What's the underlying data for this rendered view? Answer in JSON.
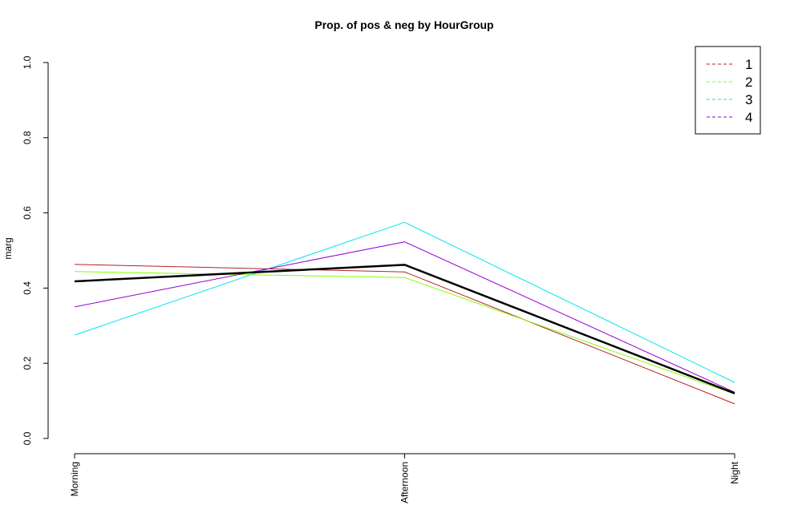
{
  "chart_data": {
    "type": "line",
    "title": "Prop. of pos & neg by HourGroup",
    "xlabel": "",
    "ylabel": "marg",
    "ylim": [
      0,
      1
    ],
    "y_ticks": [
      "0.0",
      "0.2",
      "0.4",
      "0.6",
      "0.8",
      "1.0"
    ],
    "categories": [
      "Morning",
      "Afternoon",
      "Night"
    ],
    "grid": false,
    "legend_position": "top-right",
    "series": [
      {
        "name": "1",
        "values": [
          0.463,
          0.443,
          0.092
        ],
        "color": "#b22222",
        "style": "solid"
      },
      {
        "name": "2",
        "values": [
          0.444,
          0.428,
          0.118
        ],
        "color": "#7fff00",
        "style": "solid"
      },
      {
        "name": "3",
        "values": [
          0.275,
          0.575,
          0.149
        ],
        "color": "#00e5ee",
        "style": "solid"
      },
      {
        "name": "4",
        "values": [
          0.35,
          0.523,
          0.123
        ],
        "color": "#9400d3",
        "style": "solid"
      },
      {
        "values": [
          0.418,
          0.462,
          0.12
        ],
        "color": "#000000",
        "style": "bold"
      }
    ],
    "legend": [
      {
        "label": "1",
        "color": "#b22222"
      },
      {
        "label": "2",
        "color": "#7fff00"
      },
      {
        "label": "3",
        "color": "#00e5ee"
      },
      {
        "label": "4",
        "color": "#9400d3"
      }
    ]
  }
}
